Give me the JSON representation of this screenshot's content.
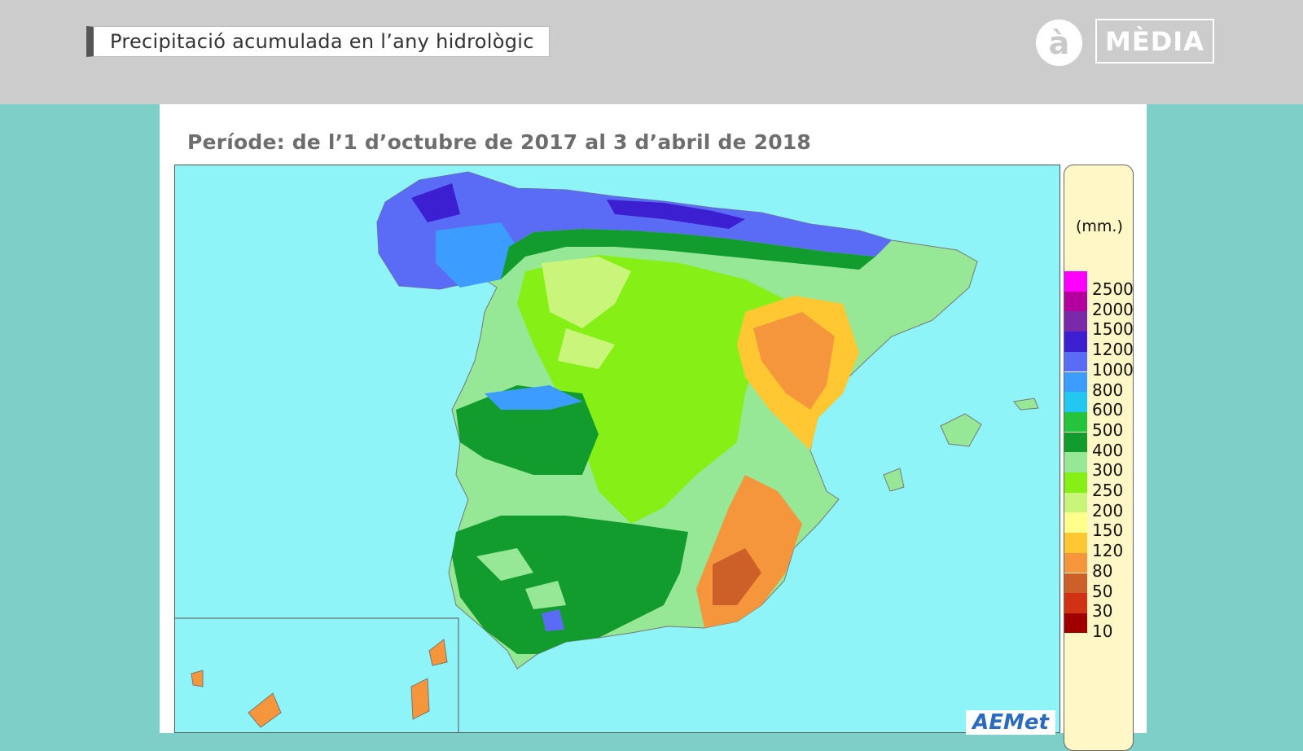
{
  "header": {
    "title": "Precipitació acumulada en l’any hidrològic",
    "logo_glyph": "à",
    "logo_text": "MÈDIA"
  },
  "map": {
    "subtitle": "Període: de l’1 d’octubre de 2017 al 3 d’abril de 2018",
    "watermark": "AEMet",
    "sea_color": "#8ff4f8"
  },
  "legend": {
    "unit": "(mm.)",
    "items": [
      {
        "label": "2500",
        "color": "#ff00ff"
      },
      {
        "label": "2000",
        "color": "#b4009e"
      },
      {
        "label": "1500",
        "color": "#7a2aa8"
      },
      {
        "label": "1200",
        "color": "#3b1fd0"
      },
      {
        "label": "1000",
        "color": "#5a6cf5"
      },
      {
        "label": "800",
        "color": "#3c9cff"
      },
      {
        "label": "600",
        "color": "#23c8f0"
      },
      {
        "label": "500",
        "color": "#26c43c"
      },
      {
        "label": "400",
        "color": "#129c2e"
      },
      {
        "label": "300",
        "color": "#96e896"
      },
      {
        "label": "250",
        "color": "#86f016"
      },
      {
        "label": "200",
        "color": "#c8f57a"
      },
      {
        "label": "150",
        "color": "#ffff8c"
      },
      {
        "label": "120",
        "color": "#ffc833"
      },
      {
        "label": "80",
        "color": "#f5963c"
      },
      {
        "label": "50",
        "color": "#cd5f28"
      },
      {
        "label": "30",
        "color": "#d23214"
      },
      {
        "label": "10",
        "color": "#a00000"
      }
    ]
  }
}
